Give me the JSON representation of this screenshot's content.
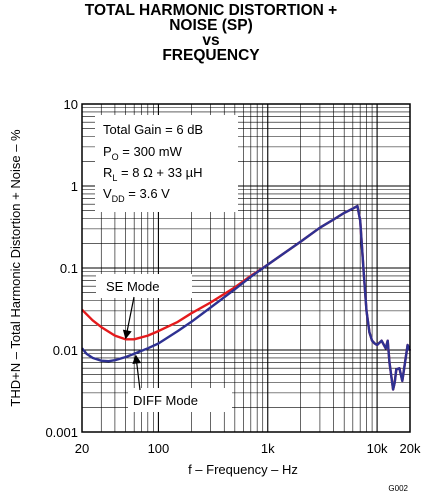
{
  "chart_data": {
    "type": "line",
    "title_lines": [
      "TOTAL HARMONIC DISTORTION +",
      "NOISE (SP)",
      "vs",
      "FREQUENCY"
    ],
    "xlabel": "f – Frequency – Hz",
    "ylabel": "THD+N – Total Harmonic Distortion + Noise – %",
    "x_scale": "log",
    "y_scale": "log",
    "xlim": [
      20,
      20000
    ],
    "ylim": [
      0.001,
      10
    ],
    "grid": true,
    "x_ticks": [
      {
        "value": 20,
        "label": "20"
      },
      {
        "value": 100,
        "label": "100"
      },
      {
        "value": 1000,
        "label": "1k"
      },
      {
        "value": 10000,
        "label": "10k"
      },
      {
        "value": 20000,
        "label": "20k"
      }
    ],
    "y_ticks": [
      {
        "value": 10,
        "label": "10"
      },
      {
        "value": 1,
        "label": "1"
      },
      {
        "value": 0.1,
        "label": "0.1"
      },
      {
        "value": 0.01,
        "label": "0.01"
      },
      {
        "value": 0.001,
        "label": "0.001"
      }
    ],
    "conditions": [
      {
        "text": "Total Gain = 6 dB"
      },
      {
        "main": "P",
        "sub": "O",
        "rest": " = 300 mW"
      },
      {
        "main": "R",
        "sub": "L",
        "rest": " = 8 Ω + 33 µH"
      },
      {
        "main": "V",
        "sub": "DD",
        "rest": " = 3.6 V"
      }
    ],
    "series": [
      {
        "name": "SE Mode",
        "color": "#e41a1c",
        "x": [
          20,
          25,
          30,
          40,
          50,
          60,
          80,
          100,
          150,
          200,
          300,
          500,
          700,
          1000,
          2000,
          3000,
          4000,
          5000,
          5500,
          6000,
          6300,
          6600,
          7000,
          7500,
          8000,
          8500,
          9000,
          9500,
          10000,
          11000,
          12000,
          12500,
          13000,
          14000,
          14500,
          15000,
          16000,
          17000,
          18000,
          19000,
          20000
        ],
        "y": [
          0.031,
          0.023,
          0.019,
          0.015,
          0.0135,
          0.0135,
          0.015,
          0.017,
          0.022,
          0.028,
          0.038,
          0.058,
          0.08,
          0.11,
          0.21,
          0.31,
          0.39,
          0.47,
          0.5,
          0.53,
          0.55,
          0.57,
          0.38,
          0.1,
          0.03,
          0.0165,
          0.013,
          0.012,
          0.0115,
          0.013,
          0.0105,
          0.013,
          0.007,
          0.0033,
          0.004,
          0.0058,
          0.006,
          0.0042,
          0.007,
          0.0115,
          0.0098
        ]
      },
      {
        "name": "DIFF Mode",
        "color": "#2e3192",
        "x": [
          20,
          22,
          25,
          30,
          35,
          40,
          50,
          60,
          80,
          100,
          150,
          200,
          300,
          500,
          700,
          1000,
          2000,
          3000,
          4000,
          5000,
          5500,
          6000,
          6300,
          6600,
          7000,
          7500,
          8000,
          8500,
          9000,
          9500,
          10000,
          11000,
          12000,
          12500,
          13000,
          14000,
          14500,
          15000,
          16000,
          17000,
          18000,
          19000,
          20000
        ],
        "y": [
          0.0105,
          0.009,
          0.008,
          0.0074,
          0.0073,
          0.0075,
          0.0082,
          0.009,
          0.0105,
          0.012,
          0.017,
          0.022,
          0.033,
          0.055,
          0.078,
          0.11,
          0.21,
          0.31,
          0.39,
          0.47,
          0.5,
          0.53,
          0.55,
          0.57,
          0.38,
          0.1,
          0.03,
          0.0165,
          0.013,
          0.012,
          0.0115,
          0.013,
          0.0105,
          0.013,
          0.007,
          0.0033,
          0.004,
          0.0058,
          0.006,
          0.0042,
          0.007,
          0.0115,
          0.0098
        ]
      }
    ],
    "annotations": [
      {
        "label": "SE Mode",
        "target_x": 50,
        "target_y": 0.0135
      },
      {
        "label": "DIFF Mode",
        "target_x": 62,
        "target_y": 0.0088
      }
    ],
    "figure_code": "G002"
  }
}
